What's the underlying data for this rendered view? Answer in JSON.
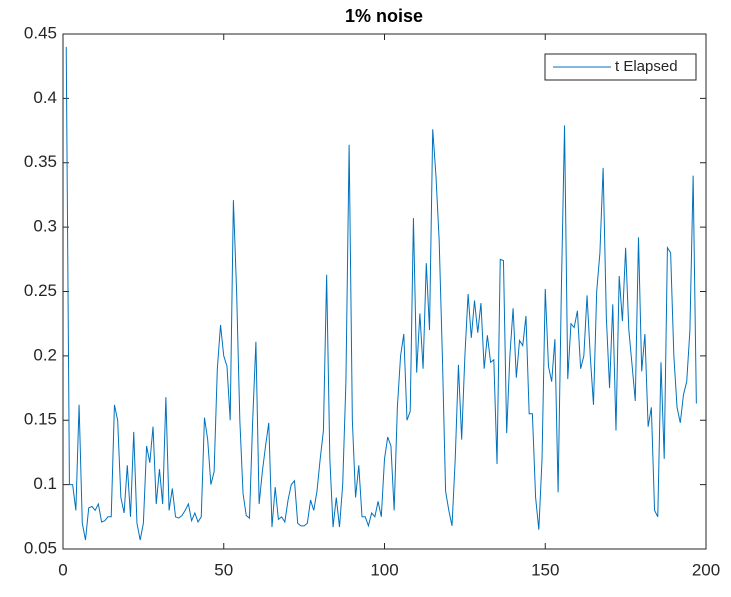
{
  "chart_data": {
    "type": "line",
    "title": "1% noise",
    "x": [
      1,
      2,
      3,
      4,
      5,
      6,
      7,
      8,
      9,
      10,
      11,
      12,
      13,
      14,
      15,
      16,
      17,
      18,
      19,
      20,
      21,
      22,
      23,
      24,
      25,
      26,
      27,
      28,
      29,
      30,
      31,
      32,
      33,
      34,
      35,
      36,
      37,
      38,
      39,
      40,
      41,
      42,
      43,
      44,
      45,
      46,
      47,
      48,
      49,
      50,
      51,
      52,
      53,
      54,
      55,
      56,
      57,
      58,
      59,
      60,
      61,
      62,
      63,
      64,
      65,
      66,
      67,
      68,
      69,
      70,
      71,
      72,
      73,
      74,
      75,
      76,
      77,
      78,
      79,
      80,
      81,
      82,
      83,
      84,
      85,
      86,
      87,
      88,
      89,
      90,
      91,
      92,
      93,
      94,
      95,
      96,
      97,
      98,
      99,
      100,
      101,
      102,
      103,
      104,
      105,
      106,
      107,
      108,
      109,
      110,
      111,
      112,
      113,
      114,
      115,
      116,
      117,
      118,
      119,
      120,
      121,
      122,
      123,
      124,
      125,
      126,
      127,
      128,
      129,
      130,
      131,
      132,
      133,
      134,
      135,
      136,
      137,
      138,
      139,
      140,
      141,
      142,
      143,
      144,
      145,
      146,
      147,
      148,
      149,
      150,
      151,
      152,
      153,
      154,
      155,
      156,
      157,
      158,
      159,
      160,
      161,
      162,
      163,
      164,
      165,
      166,
      167,
      168,
      169,
      170,
      171,
      172,
      173,
      174,
      175,
      176,
      177,
      178,
      179,
      180,
      181,
      182,
      183,
      184,
      185,
      186,
      187,
      188,
      189,
      190,
      191,
      192,
      193,
      194,
      195,
      196,
      197
    ],
    "series": [
      {
        "name": "t Elapsed",
        "color": "#0072bd",
        "values": [
          0.44,
          0.1,
          0.1,
          0.08,
          0.162,
          0.07,
          0.057,
          0.082,
          0.083,
          0.08,
          0.085,
          0.071,
          0.072,
          0.075,
          0.075,
          0.162,
          0.15,
          0.09,
          0.078,
          0.115,
          0.075,
          0.141,
          0.07,
          0.057,
          0.07,
          0.13,
          0.117,
          0.145,
          0.085,
          0.112,
          0.085,
          0.168,
          0.08,
          0.097,
          0.075,
          0.074,
          0.076,
          0.08,
          0.085,
          0.072,
          0.078,
          0.071,
          0.075,
          0.152,
          0.135,
          0.1,
          0.11,
          0.19,
          0.224,
          0.2,
          0.192,
          0.15,
          0.321,
          0.25,
          0.15,
          0.093,
          0.076,
          0.074,
          0.15,
          0.211,
          0.085,
          0.11,
          0.13,
          0.148,
          0.067,
          0.098,
          0.073,
          0.075,
          0.071,
          0.088,
          0.1,
          0.103,
          0.07,
          0.068,
          0.068,
          0.07,
          0.088,
          0.08,
          0.095,
          0.12,
          0.142,
          0.263,
          0.12,
          0.067,
          0.09,
          0.067,
          0.1,
          0.18,
          0.364,
          0.15,
          0.09,
          0.115,
          0.075,
          0.075,
          0.068,
          0.078,
          0.075,
          0.087,
          0.075,
          0.12,
          0.137,
          0.13,
          0.08,
          0.16,
          0.2,
          0.217,
          0.15,
          0.157,
          0.307,
          0.187,
          0.233,
          0.19,
          0.272,
          0.22,
          0.376,
          0.34,
          0.29,
          0.2,
          0.095,
          0.08,
          0.068,
          0.12,
          0.193,
          0.135,
          0.2,
          0.248,
          0.214,
          0.243,
          0.218,
          0.241,
          0.19,
          0.216,
          0.195,
          0.197,
          0.116,
          0.275,
          0.274,
          0.14,
          0.2,
          0.237,
          0.183,
          0.212,
          0.208,
          0.231,
          0.155,
          0.155,
          0.09,
          0.065,
          0.12,
          0.252,
          0.192,
          0.18,
          0.213,
          0.094,
          0.25,
          0.379,
          0.182,
          0.225,
          0.222,
          0.235,
          0.19,
          0.2,
          0.247,
          0.2,
          0.162,
          0.25,
          0.28,
          0.346,
          0.23,
          0.175,
          0.24,
          0.142,
          0.262,
          0.227,
          0.284,
          0.22,
          0.193,
          0.165,
          0.292,
          0.188,
          0.217,
          0.145,
          0.16,
          0.08,
          0.075,
          0.195,
          0.12,
          0.284,
          0.28,
          0.2,
          0.16,
          0.148,
          0.17,
          0.18,
          0.22,
          0.34,
          0.163
        ]
      }
    ],
    "xlim": [
      0,
      200
    ],
    "xticks": [
      0,
      50,
      100,
      150,
      200
    ],
    "ylim": [
      0.05,
      0.45
    ],
    "yticks": [
      0.05,
      0.1,
      0.15,
      0.2,
      0.25,
      0.3,
      0.35,
      0.4,
      0.45
    ],
    "legend": "northeast"
  }
}
